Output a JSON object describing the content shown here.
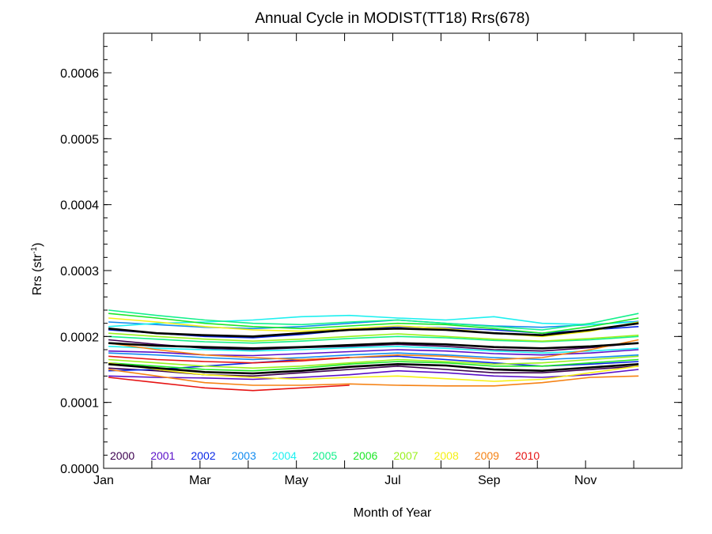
{
  "chart_data": {
    "type": "line",
    "title": "Annual Cycle in MODIST(TT18) Rrs(678)",
    "xlabel": "Month of Year",
    "ylabel_base": "Rrs (str",
    "ylabel_sup": "-1",
    "ylabel_close": ")",
    "xlim": [
      0,
      12
    ],
    "ylim": [
      0,
      0.00066
    ],
    "x_ticks": [
      {
        "value": 0,
        "label": "Jan"
      },
      {
        "value": 2,
        "label": "Mar"
      },
      {
        "value": 4,
        "label": "May"
      },
      {
        "value": 6,
        "label": "Jul"
      },
      {
        "value": 8,
        "label": "Sep"
      },
      {
        "value": 10,
        "label": "Nov"
      }
    ],
    "y_ticks": [
      {
        "value": 0,
        "label": "0.0000"
      },
      {
        "value": 0.0001,
        "label": "0.0001"
      },
      {
        "value": 0.0002,
        "label": "0.0002"
      },
      {
        "value": 0.0003,
        "label": "0.0003"
      },
      {
        "value": 0.0004,
        "label": "0.0004"
      },
      {
        "value": 0.0005,
        "label": "0.0005"
      },
      {
        "value": 0.0006,
        "label": "0.0006"
      }
    ],
    "grid": false,
    "legend": {
      "placement": "bottom-left",
      "entries": [
        {
          "label": "2000",
          "color": "#3c0050"
        },
        {
          "label": "2001",
          "color": "#5a10c8"
        },
        {
          "label": "2002",
          "color": "#0a28e6"
        },
        {
          "label": "2003",
          "color": "#148cf0"
        },
        {
          "label": "2004",
          "color": "#1ef0f0"
        },
        {
          "label": "2005",
          "color": "#14f08c"
        },
        {
          "label": "2006",
          "color": "#1ee628"
        },
        {
          "label": "2007",
          "color": "#9bf01e"
        },
        {
          "label": "2008",
          "color": "#f5f014"
        },
        {
          "label": "2009",
          "color": "#f58214"
        },
        {
          "label": "2010",
          "color": "#e61414"
        }
      ]
    },
    "x": [
      0.1,
      1.1,
      2.1,
      3.1,
      4.1,
      5.1,
      6.1,
      7.1,
      8.1,
      9.1,
      10.1,
      11.1
    ],
    "series": [
      {
        "color": "#3c0050",
        "values": [
          0.000195,
          0.000188,
          0.000182,
          0.00018,
          0.000183,
          0.000185,
          0.000188,
          0.000185,
          0.00018,
          0.000178,
          0.000183,
          0.00019
        ]
      },
      {
        "color": "#3c0050",
        "values": [
          0.000152,
          0.000148,
          0.000142,
          0.00014,
          0.000145,
          0.00015,
          0.000155,
          0.00015,
          0.000145,
          0.000145,
          0.00015,
          0.000155
        ]
      },
      {
        "color": "#5a10c8",
        "values": [
          0.000178,
          0.000176,
          0.000172,
          0.000171,
          0.000174,
          0.000177,
          0.00018,
          0.000178,
          0.000174,
          0.000172,
          0.000175,
          0.00018
        ]
      },
      {
        "color": "#5a10c8",
        "values": [
          0.00014,
          0.000138,
          0.000137,
          0.000135,
          0.000138,
          0.000142,
          0.000148,
          0.000145,
          0.00014,
          0.000138,
          0.000142,
          0.00015
        ]
      },
      {
        "color": "#0a28e6",
        "values": [
          0.00021,
          0.000205,
          0.0002,
          0.000198,
          0.000203,
          0.00021,
          0.000215,
          0.000213,
          0.00021,
          0.000205,
          0.00021,
          0.000215
        ]
      },
      {
        "color": "#0a28e6",
        "values": [
          0.000148,
          0.00015,
          0.000155,
          0.00016,
          0.000165,
          0.000168,
          0.00017,
          0.000165,
          0.00016,
          0.000155,
          0.000158,
          0.000162
        ]
      },
      {
        "color": "#148cf0",
        "values": [
          0.000222,
          0.000218,
          0.000214,
          0.000212,
          0.000215,
          0.00022,
          0.000225,
          0.00022,
          0.000216,
          0.000214,
          0.000218,
          0.000223
        ]
      },
      {
        "color": "#148cf0",
        "values": [
          0.000175,
          0.000172,
          0.000168,
          0.000165,
          0.000168,
          0.000172,
          0.000175,
          0.000172,
          0.000168,
          0.000165,
          0.000168,
          0.000172
        ]
      },
      {
        "color": "#1ef0f0",
        "values": [
          0.000215,
          0.00022,
          0.000222,
          0.000225,
          0.00023,
          0.000232,
          0.000228,
          0.000225,
          0.00023,
          0.00022,
          0.000218,
          0.000222
        ]
      },
      {
        "color": "#1ef0f0",
        "values": [
          0.000185,
          0.000182,
          0.00018,
          0.000178,
          0.00018,
          0.000183,
          0.000185,
          0.000182,
          0.000178,
          0.000175,
          0.000178,
          0.000182
        ]
      },
      {
        "color": "#14f08c",
        "values": [
          0.00024,
          0.000232,
          0.000225,
          0.00022,
          0.000218,
          0.000222,
          0.000225,
          0.00022,
          0.000215,
          0.00021,
          0.00022,
          0.000235
        ]
      },
      {
        "color": "#14f08c",
        "values": [
          0.0002,
          0.000196,
          0.000192,
          0.00019,
          0.000193,
          0.000197,
          0.0002,
          0.000198,
          0.000194,
          0.000192,
          0.000195,
          0.0002
        ]
      },
      {
        "color": "#1ee628",
        "values": [
          0.000235,
          0.000228,
          0.00022,
          0.000215,
          0.000212,
          0.000216,
          0.00022,
          0.000218,
          0.000212,
          0.000205,
          0.000215,
          0.000228
        ]
      },
      {
        "color": "#1ee628",
        "values": [
          0.00016,
          0.000155,
          0.00015,
          0.000148,
          0.000152,
          0.000158,
          0.000162,
          0.00016,
          0.000155,
          0.000155,
          0.00016,
          0.000165
        ]
      },
      {
        "color": "#9bf01e",
        "values": [
          0.000205,
          0.0002,
          0.000196,
          0.000193,
          0.000196,
          0.0002,
          0.000204,
          0.0002,
          0.000196,
          0.000193,
          0.000197,
          0.000202
        ]
      },
      {
        "color": "#9bf01e",
        "values": [
          0.000165,
          0.00016,
          0.000155,
          0.000152,
          0.000155,
          0.00016,
          0.000165,
          0.000162,
          0.000158,
          0.00016,
          0.000165,
          0.00017
        ]
      },
      {
        "color": "#f5f014",
        "values": [
          0.000228,
          0.000222,
          0.000215,
          0.00021,
          0.000208,
          0.000212,
          0.000216,
          0.000212,
          0.000205,
          0.0002,
          0.000208,
          0.000222
        ]
      },
      {
        "color": "#f5f014",
        "values": [
          0.00016,
          0.00015,
          0.000142,
          0.000138,
          0.000135,
          0.000138,
          0.00014,
          0.000136,
          0.000132,
          0.000135,
          0.000145,
          0.000155
        ]
      },
      {
        "color": "#f58214",
        "values": [
          0.00019,
          0.00018,
          0.000172,
          0.000168,
          0.000165,
          0.000168,
          0.000172,
          0.00017,
          0.000165,
          0.000168,
          0.00018,
          0.000195
        ]
      },
      {
        "color": "#f58214",
        "values": [
          0.00015,
          0.00014,
          0.00013,
          0.000126,
          0.000126,
          0.000128,
          0.000126,
          0.000125,
          0.000125,
          0.00013,
          0.000138,
          0.00014
        ]
      },
      {
        "color": "#e61414",
        "values": [
          0.00017,
          0.000165,
          0.000162,
          0.00016,
          0.000163,
          0.000168,
          null,
          null,
          null,
          null,
          null,
          null
        ]
      },
      {
        "color": "#e61414",
        "values": [
          0.000138,
          0.00013,
          0.000122,
          0.000118,
          0.000122,
          0.000126,
          null,
          null,
          null,
          null,
          null,
          null
        ]
      },
      {
        "color": "#000000",
        "width": 2.6,
        "values": [
          0.000212,
          0.000205,
          0.000202,
          0.0002,
          0.000205,
          0.00021,
          0.000212,
          0.00021,
          0.000205,
          0.000202,
          0.00021,
          0.00022
        ]
      },
      {
        "color": "#000000",
        "width": 2.6,
        "values": [
          0.00019,
          0.000186,
          0.000184,
          0.000182,
          0.000184,
          0.000187,
          0.00019,
          0.000188,
          0.000184,
          0.000182,
          0.000185,
          0.00019
        ]
      },
      {
        "color": "#000000",
        "width": 2.6,
        "values": [
          0.000158,
          0.000152,
          0.000146,
          0.000144,
          0.000148,
          0.000154,
          0.000158,
          0.000156,
          0.00015,
          0.000148,
          0.000153,
          0.000158
        ]
      }
    ]
  }
}
